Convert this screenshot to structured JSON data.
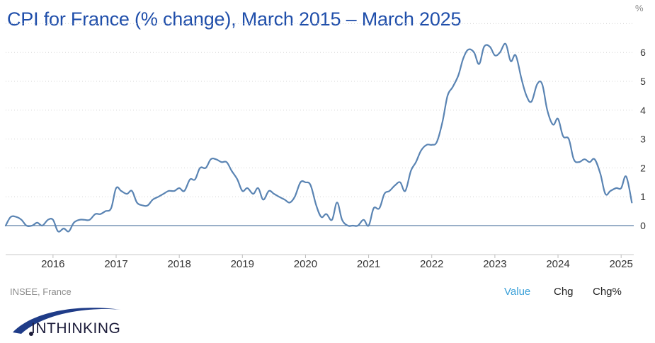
{
  "header": {
    "title": "CPI for France (% change), March 2015 – March 2025",
    "unit": "%"
  },
  "footer": {
    "source": "INSEE, France",
    "tabs": [
      "Value",
      "Chg",
      "Chg%"
    ],
    "active_tab": "Value",
    "logo_text": "INTHINKING"
  },
  "colors": {
    "line": "#5a84b3",
    "zero_line": "#5c7fa6",
    "title": "#1f4eaa",
    "active_tab": "#3aa0d8"
  },
  "chart_data": {
    "type": "line",
    "title": "CPI for France (% change), March 2015 – March 2025",
    "ylabel": "%",
    "ylim": [
      -1,
      7
    ],
    "yticks": [
      0,
      1,
      2,
      3,
      4,
      5,
      6
    ],
    "xlim": [
      2015.25,
      2025.2
    ],
    "xticks": [
      "2016",
      "2017",
      "2018",
      "2019",
      "2020",
      "2021",
      "2022",
      "2023",
      "2024",
      "2025"
    ],
    "grid": "horizontal dotted",
    "series": [
      {
        "x": [
          2015.25,
          2015.33,
          2015.42,
          2015.5,
          2015.58,
          2015.67,
          2015.75,
          2015.83,
          2015.92,
          2016.0,
          2016.08,
          2016.17,
          2016.25,
          2016.33,
          2016.42,
          2016.5,
          2016.58,
          2016.67,
          2016.75,
          2016.83,
          2016.92,
          2017.0,
          2017.08,
          2017.17,
          2017.25,
          2017.33,
          2017.42,
          2017.5,
          2017.58,
          2017.67,
          2017.75,
          2017.83,
          2017.92,
          2018.0,
          2018.08,
          2018.17,
          2018.25,
          2018.33,
          2018.42,
          2018.5,
          2018.58,
          2018.67,
          2018.75,
          2018.83,
          2018.92,
          2019.0,
          2019.08,
          2019.17,
          2019.25,
          2019.33,
          2019.42,
          2019.5,
          2019.58,
          2019.67,
          2019.75,
          2019.83,
          2019.92,
          2020.0,
          2020.08,
          2020.17,
          2020.25,
          2020.33,
          2020.42,
          2020.5,
          2020.58,
          2020.67,
          2020.75,
          2020.83,
          2020.92,
          2021.0,
          2021.08,
          2021.17,
          2021.25,
          2021.33,
          2021.42,
          2021.5,
          2021.58,
          2021.67,
          2021.75,
          2021.83,
          2021.92,
          2022.0,
          2022.08,
          2022.17,
          2022.25,
          2022.33,
          2022.42,
          2022.5,
          2022.58,
          2022.67,
          2022.75,
          2022.83,
          2022.92,
          2023.0,
          2023.08,
          2023.17,
          2023.25,
          2023.33,
          2023.42,
          2023.5,
          2023.58,
          2023.67,
          2023.75,
          2023.83,
          2023.92,
          2024.0,
          2024.08,
          2024.17,
          2024.25,
          2024.33,
          2024.42,
          2024.5,
          2024.58,
          2024.67,
          2024.75,
          2024.83,
          2024.92,
          2025.0,
          2025.08,
          2025.17
        ],
        "values": [
          0.0,
          0.3,
          0.3,
          0.2,
          0.0,
          0.0,
          0.1,
          0.0,
          0.2,
          0.2,
          -0.2,
          -0.1,
          -0.2,
          0.1,
          0.2,
          0.2,
          0.2,
          0.4,
          0.4,
          0.5,
          0.6,
          1.3,
          1.2,
          1.1,
          1.2,
          0.8,
          0.7,
          0.7,
          0.9,
          1.0,
          1.1,
          1.2,
          1.2,
          1.3,
          1.2,
          1.6,
          1.6,
          2.0,
          2.0,
          2.3,
          2.3,
          2.2,
          2.2,
          1.9,
          1.6,
          1.2,
          1.3,
          1.1,
          1.3,
          0.9,
          1.2,
          1.1,
          1.0,
          0.9,
          0.8,
          1.0,
          1.5,
          1.5,
          1.4,
          0.7,
          0.3,
          0.4,
          0.2,
          0.8,
          0.2,
          0.0,
          0.0,
          0.0,
          0.2,
          0.0,
          0.6,
          0.6,
          1.1,
          1.2,
          1.4,
          1.5,
          1.2,
          1.9,
          2.2,
          2.6,
          2.8,
          2.8,
          2.9,
          3.6,
          4.5,
          4.8,
          5.2,
          5.8,
          6.1,
          6.0,
          5.6,
          6.2,
          6.2,
          5.9,
          6.0,
          6.3,
          5.7,
          5.9,
          5.1,
          4.5,
          4.3,
          4.9,
          4.9,
          4.0,
          3.5,
          3.7,
          3.1,
          3.0,
          2.3,
          2.2,
          2.3,
          2.2,
          2.3,
          1.8,
          1.1,
          1.2,
          1.3,
          1.3,
          1.7,
          0.8
        ]
      }
    ]
  }
}
